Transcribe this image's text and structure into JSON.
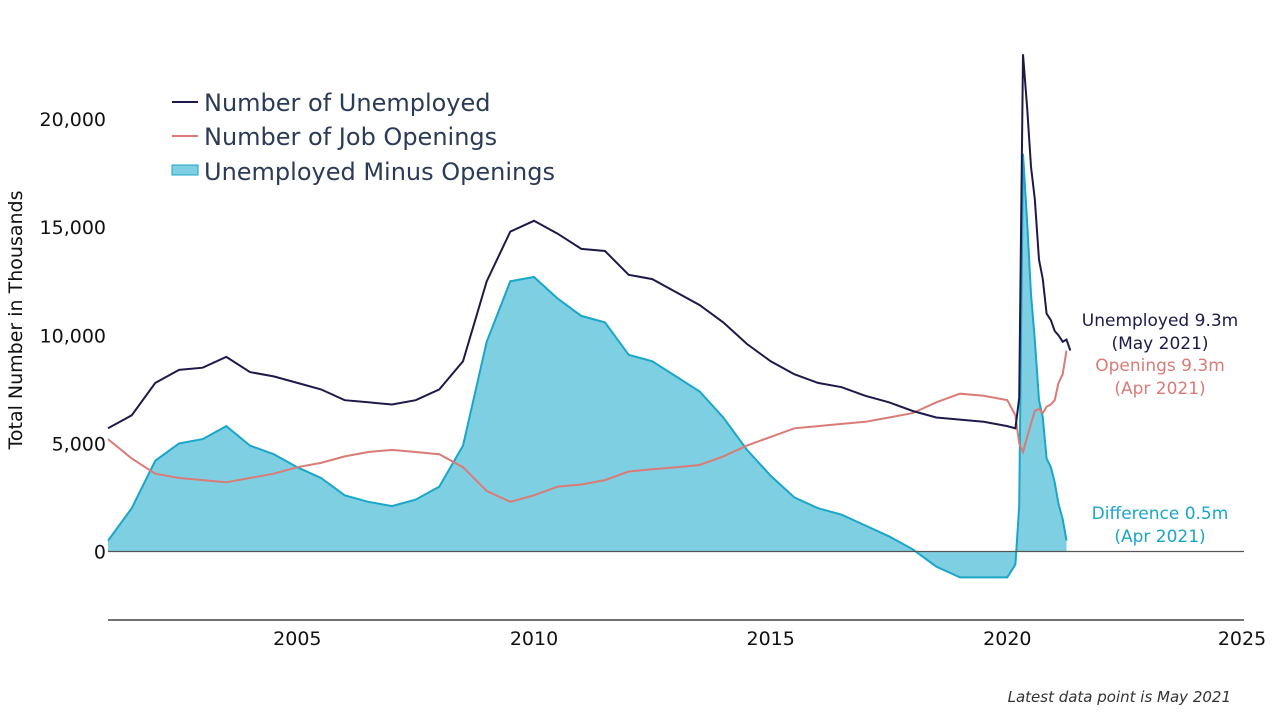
{
  "chart_data": {
    "type": "line",
    "ylabel": "Total Number in Thousands",
    "xlim": [
      2001,
      2025
    ],
    "ylim": [
      -2800,
      23200
    ],
    "x_ticks": [
      2005,
      2010,
      2015,
      2020,
      2025
    ],
    "y_ticks": [
      0,
      5000,
      10000,
      15000,
      20000
    ],
    "x_tick_labels": [
      "2005",
      "2010",
      "2015",
      "2020",
      "2025"
    ],
    "y_tick_labels": [
      "0",
      "5,000",
      "10,000",
      "15,000",
      "20,000"
    ],
    "legend_placement": "top-left",
    "colors": {
      "unemployed": "#1d1a4a",
      "openings": "#d97b76",
      "difference_fill": "#7fcfe2",
      "difference_line": "#1aa6c8",
      "axis": "#222222",
      "zero_line": "#555555"
    },
    "series": [
      {
        "name": "Number of Unemployed",
        "key": "unemployed",
        "x": [
          2001.0,
          2001.5,
          2002.0,
          2002.5,
          2003.0,
          2003.5,
          2004.0,
          2004.5,
          2005.0,
          2005.5,
          2006.0,
          2006.5,
          2007.0,
          2007.5,
          2008.0,
          2008.5,
          2009.0,
          2009.5,
          2010.0,
          2010.5,
          2011.0,
          2011.5,
          2012.0,
          2012.5,
          2013.0,
          2013.5,
          2014.0,
          2014.5,
          2015.0,
          2015.5,
          2016.0,
          2016.5,
          2017.0,
          2017.5,
          2018.0,
          2018.5,
          2019.0,
          2019.5,
          2020.0,
          2020.17,
          2020.25,
          2020.33,
          2020.42,
          2020.5,
          2020.58,
          2020.67,
          2020.75,
          2020.83,
          2020.92,
          2021.0,
          2021.08,
          2021.17,
          2021.25,
          2021.33
        ],
        "values": [
          5700,
          6300,
          7800,
          8400,
          8500,
          9000,
          8300,
          8100,
          7800,
          7500,
          7000,
          6900,
          6800,
          7000,
          7500,
          8800,
          12500,
          14800,
          15300,
          14700,
          14000,
          13900,
          12800,
          12600,
          12000,
          11400,
          10600,
          9600,
          8800,
          8200,
          7800,
          7600,
          7200,
          6900,
          6500,
          6200,
          6100,
          6000,
          5800,
          5700,
          7100,
          23000,
          20500,
          17800,
          16300,
          13500,
          12600,
          11000,
          10700,
          10200,
          10000,
          9700,
          9800,
          9300
        ]
      },
      {
        "name": "Number of Job Openings",
        "key": "openings",
        "x": [
          2001.0,
          2001.5,
          2002.0,
          2002.5,
          2003.0,
          2003.5,
          2004.0,
          2004.5,
          2005.0,
          2005.5,
          2006.0,
          2006.5,
          2007.0,
          2007.5,
          2008.0,
          2008.5,
          2009.0,
          2009.5,
          2010.0,
          2010.5,
          2011.0,
          2011.5,
          2012.0,
          2012.5,
          2013.0,
          2013.5,
          2014.0,
          2014.5,
          2015.0,
          2015.5,
          2016.0,
          2016.5,
          2017.0,
          2017.5,
          2018.0,
          2018.5,
          2019.0,
          2019.5,
          2020.0,
          2020.17,
          2020.25,
          2020.33,
          2020.42,
          2020.5,
          2020.58,
          2020.67,
          2020.75,
          2020.83,
          2020.92,
          2021.0,
          2021.08,
          2021.17,
          2021.25
        ],
        "values": [
          5200,
          4300,
          3600,
          3400,
          3300,
          3200,
          3400,
          3600,
          3900,
          4100,
          4400,
          4600,
          4700,
          4600,
          4500,
          3900,
          2800,
          2300,
          2600,
          3000,
          3100,
          3300,
          3700,
          3800,
          3900,
          4000,
          4400,
          4900,
          5300,
          5700,
          5800,
          5900,
          6000,
          6200,
          6400,
          6900,
          7300,
          7200,
          7000,
          6300,
          5000,
          4600,
          5300,
          5900,
          6500,
          6600,
          6400,
          6700,
          6800,
          7000,
          7800,
          8200,
          9300
        ]
      },
      {
        "name": "Unemployed Minus Openings",
        "key": "difference",
        "x": [
          2001.0,
          2001.5,
          2002.0,
          2002.5,
          2003.0,
          2003.5,
          2004.0,
          2004.5,
          2005.0,
          2005.5,
          2006.0,
          2006.5,
          2007.0,
          2007.5,
          2008.0,
          2008.5,
          2009.0,
          2009.5,
          2010.0,
          2010.5,
          2011.0,
          2011.5,
          2012.0,
          2012.5,
          2013.0,
          2013.5,
          2014.0,
          2014.5,
          2015.0,
          2015.5,
          2016.0,
          2016.5,
          2017.0,
          2017.5,
          2018.0,
          2018.5,
          2019.0,
          2019.5,
          2020.0,
          2020.17,
          2020.25,
          2020.33,
          2020.42,
          2020.5,
          2020.58,
          2020.67,
          2020.75,
          2020.83,
          2020.92,
          2021.0,
          2021.08,
          2021.17,
          2021.25
        ],
        "values": [
          500,
          2000,
          4200,
          5000,
          5200,
          5800,
          4900,
          4500,
          3900,
          3400,
          2600,
          2300,
          2100,
          2400,
          3000,
          4900,
          9700,
          12500,
          12700,
          11700,
          10900,
          10600,
          9100,
          8800,
          8100,
          7400,
          6200,
          4700,
          3500,
          2500,
          2000,
          1700,
          1200,
          700,
          100,
          -700,
          -1200,
          -1200,
          -1200,
          -600,
          2100,
          18400,
          15200,
          11900,
          9800,
          7000,
          6200,
          4300,
          3900,
          3200,
          2200,
          1500,
          500
        ]
      }
    ],
    "annotations": [
      {
        "key": "unemployed",
        "line1": "Unemployed 9.3m",
        "line2": "(May 2021)"
      },
      {
        "key": "openings",
        "line1": "Openings 9.3m",
        "line2": "(Apr 2021)"
      },
      {
        "key": "difference",
        "line1": "Difference 0.5m",
        "line2": "(Apr 2021)"
      }
    ]
  },
  "footnote": "Latest data point is May 2021"
}
